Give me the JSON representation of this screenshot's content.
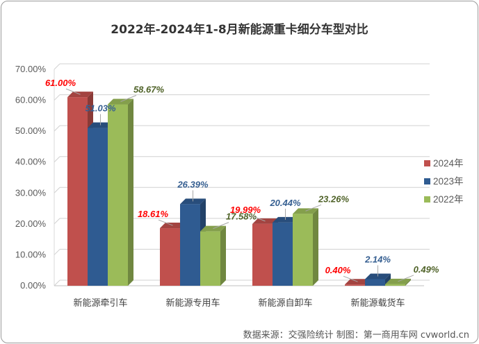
{
  "chart_data": {
    "type": "bar",
    "title": "2022年-2024年1-8月新能源重卡细分车型对比",
    "categories": [
      "新能源牵引车",
      "新能源专用车",
      "新能源自卸车",
      "新能源载货车"
    ],
    "series": [
      {
        "name": "2024年",
        "color": "#c0504d",
        "label_color": "#ff0000",
        "values": [
          61.0,
          18.61,
          19.99,
          0.4
        ],
        "labels": [
          "61.00%",
          "18.61%",
          "19.99%",
          "0.40%"
        ]
      },
      {
        "name": "2023年",
        "color": "#2f5b91",
        "label_color": "#365f91",
        "values": [
          51.03,
          26.39,
          20.44,
          2.14
        ],
        "labels": [
          "51.03%",
          "26.39%",
          "20.44%",
          "2.14%"
        ]
      },
      {
        "name": "2022年",
        "color": "#9bbb59",
        "label_color": "#4f6228",
        "values": [
          58.67,
          17.58,
          23.26,
          0.49
        ],
        "labels": [
          "58.67%",
          "17.58%",
          "23.26%",
          "0.49%"
        ]
      }
    ],
    "ylim": [
      0,
      70
    ],
    "yticks": [
      "0.00%",
      "10.00%",
      "20.00%",
      "30.00%",
      "40.00%",
      "50.00%",
      "60.00%",
      "70.00%"
    ],
    "legend_position": "right",
    "source": "数据来源：交强险统计  制图：第一商用车网 cvworld.cn"
  }
}
